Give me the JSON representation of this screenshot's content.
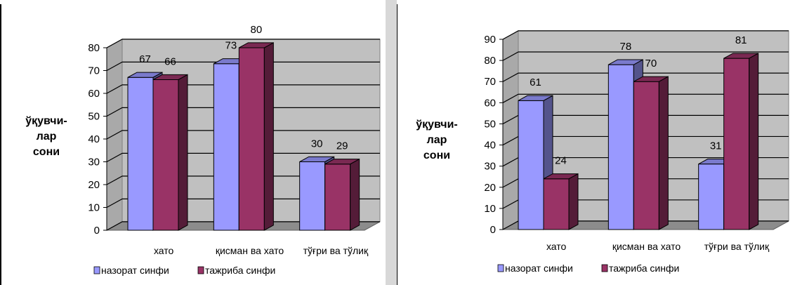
{
  "chart_data": [
    {
      "type": "bar",
      "title": "",
      "xlabel": "",
      "ylabel_lines": [
        "ўқувчи-",
        "лар",
        "сони"
      ],
      "categories": [
        "хато",
        "қисман ва хато",
        "тўғри ва тўлиқ"
      ],
      "series": [
        {
          "name": "назорат синфи",
          "values": [
            67,
            73,
            30
          ],
          "color": "#9999ff"
        },
        {
          "name": "тажриба синфи",
          "values": [
            66,
            80,
            29
          ],
          "color": "#993366"
        }
      ],
      "ylim": [
        0,
        80
      ],
      "yticks": [
        0,
        10,
        20,
        30,
        40,
        50,
        60,
        70,
        80
      ],
      "grid": true,
      "legend": "bottom",
      "style": "3d"
    },
    {
      "type": "bar",
      "title": "",
      "xlabel": "",
      "ylabel_lines": [
        "ўқувчи-",
        "лар",
        "сони"
      ],
      "categories": [
        "хато",
        "қисман ва хато",
        "тўғри ва тўлиқ"
      ],
      "series": [
        {
          "name": "назорат синфи",
          "values": [
            61,
            78,
            31
          ],
          "color": "#9999ff"
        },
        {
          "name": "тажриба синфи",
          "values": [
            24,
            70,
            81
          ],
          "color": "#993366"
        }
      ],
      "ylim": [
        0,
        90
      ],
      "yticks": [
        0,
        10,
        20,
        30,
        40,
        50,
        60,
        70,
        80,
        90
      ],
      "grid": true,
      "legend": "bottom",
      "style": "3d"
    }
  ]
}
